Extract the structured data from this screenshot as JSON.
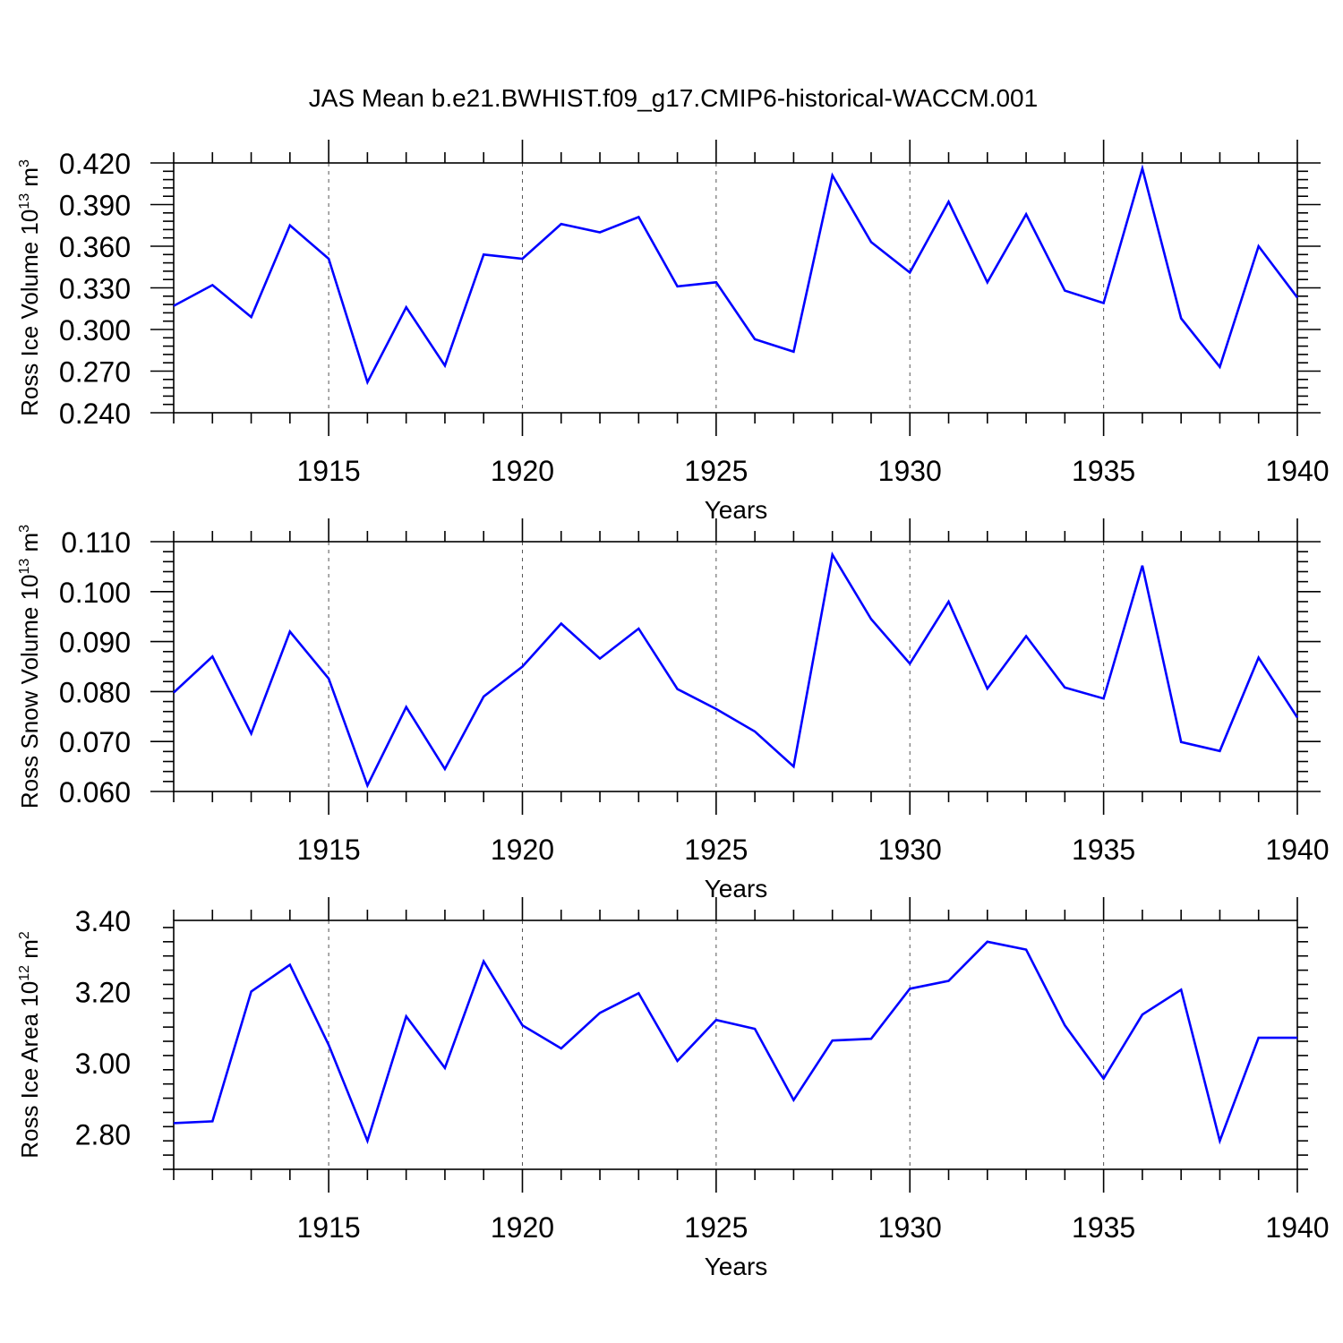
{
  "figure_title": "JAS Mean b.e21.BWHIST.f09_g17.CMIP6-historical-WACCM.001",
  "colors": {
    "line": "#0000ff",
    "axes": "#000000",
    "grid": "#555555"
  },
  "chart_data": [
    {
      "type": "line",
      "ylabel": {
        "text": "Ross Ice Volume 10",
        "sup1": "13",
        "mid": " m",
        "sup2": "3"
      },
      "xlabel": "Years",
      "xlim": [
        1911,
        1940
      ],
      "xticks": [
        1915,
        1920,
        1925,
        1930,
        1935,
        1940
      ],
      "ylim": [
        0.24,
        0.42
      ],
      "yticks": [
        0.24,
        0.27,
        0.3,
        0.33,
        0.36,
        0.39,
        0.42
      ],
      "ytick_labels": [
        "0.240",
        "0.270",
        "0.300",
        "0.330",
        "0.360",
        "0.390",
        "0.420"
      ],
      "grid": "vertical dashed at major x ticks",
      "x": [
        1911,
        1912,
        1913,
        1914,
        1915,
        1916,
        1917,
        1918,
        1919,
        1920,
        1921,
        1922,
        1923,
        1924,
        1925,
        1926,
        1927,
        1928,
        1929,
        1930,
        1931,
        1932,
        1933,
        1934,
        1935,
        1936,
        1937,
        1938,
        1939,
        1940
      ],
      "values": [
        0.317,
        0.332,
        0.309,
        0.375,
        0.351,
        0.262,
        0.316,
        0.274,
        0.354,
        0.351,
        0.376,
        0.37,
        0.381,
        0.331,
        0.334,
        0.293,
        0.284,
        0.411,
        0.363,
        0.341,
        0.392,
        0.334,
        0.383,
        0.328,
        0.319,
        0.416,
        0.308,
        0.273,
        0.36,
        0.323
      ]
    },
    {
      "type": "line",
      "ylabel": {
        "text": "Ross Snow Volume 10",
        "sup1": "13",
        "mid": " m",
        "sup2": "3"
      },
      "xlabel": "Years",
      "xlim": [
        1911,
        1940
      ],
      "xticks": [
        1915,
        1920,
        1925,
        1930,
        1935,
        1940
      ],
      "ylim": [
        0.06,
        0.11
      ],
      "yticks": [
        0.06,
        0.07,
        0.08,
        0.09,
        0.1,
        0.11
      ],
      "ytick_labels": [
        "0.060",
        "0.070",
        "0.080",
        "0.090",
        "0.100",
        "0.110"
      ],
      "grid": "vertical dashed at major x ticks",
      "x": [
        1911,
        1912,
        1913,
        1914,
        1915,
        1916,
        1917,
        1918,
        1919,
        1920,
        1921,
        1922,
        1923,
        1924,
        1925,
        1926,
        1927,
        1928,
        1929,
        1930,
        1931,
        1932,
        1933,
        1934,
        1935,
        1936,
        1937,
        1938,
        1939,
        1940
      ],
      "values": [
        0.0798,
        0.087,
        0.0716,
        0.092,
        0.0826,
        0.0612,
        0.0769,
        0.0645,
        0.079,
        0.085,
        0.0936,
        0.0866,
        0.0926,
        0.0805,
        0.0765,
        0.072,
        0.065,
        0.1074,
        0.0945,
        0.0856,
        0.098,
        0.0806,
        0.0911,
        0.0808,
        0.0786,
        0.1052,
        0.0699,
        0.0681,
        0.0868,
        0.0748
      ]
    },
    {
      "type": "line",
      "ylabel": {
        "text": "Ross Ice Area 10",
        "sup1": "12",
        "mid": " m",
        "sup2": "2"
      },
      "xlabel": "Years",
      "xlim": [
        1911,
        1940
      ],
      "xticks": [
        1915,
        1920,
        1925,
        1930,
        1935,
        1940
      ],
      "ylim": [
        2.7,
        3.4
      ],
      "yticks": [
        2.8,
        3.0,
        3.2,
        3.4
      ],
      "ytick_labels": [
        "2.80",
        "3.00",
        "3.20",
        "3.40"
      ],
      "grid": "vertical dashed at major x ticks",
      "x": [
        1911,
        1912,
        1913,
        1914,
        1915,
        1916,
        1917,
        1918,
        1919,
        1920,
        1921,
        1922,
        1923,
        1924,
        1925,
        1926,
        1927,
        1928,
        1929,
        1930,
        1931,
        1932,
        1933,
        1934,
        1935,
        1936,
        1937,
        1938,
        1939,
        1940
      ],
      "values": [
        2.83,
        2.835,
        3.2,
        3.275,
        3.05,
        2.78,
        3.13,
        2.985,
        3.285,
        3.105,
        3.04,
        3.14,
        3.195,
        3.005,
        3.12,
        3.095,
        2.895,
        3.062,
        3.067,
        3.208,
        3.23,
        3.34,
        3.318,
        3.105,
        2.955,
        3.135,
        3.205,
        2.78,
        3.07,
        3.07
      ]
    }
  ]
}
